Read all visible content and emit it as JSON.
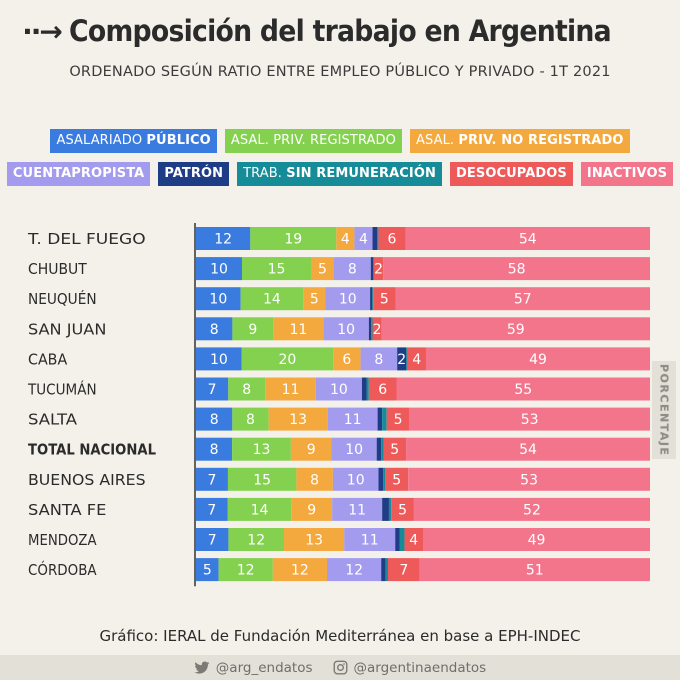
{
  "header": {
    "title": "Composición del trabajo en Argentina",
    "subtitle": "ORDENADO SEGÚN RATIO ENTRE EMPLEO PÚBLICO Y PRIVADO  -  1T 2021",
    "arrow_icon": "dotted-arrow-icon"
  },
  "legend": [
    {
      "prefix": "ASALARIADO ",
      "bold": "PÚBLICO",
      "color": "#3a7be0"
    },
    {
      "prefix": "ASAL. PRIV. REGISTRADO",
      "bold": "",
      "color": "#83d14f"
    },
    {
      "prefix": "ASAL. ",
      "bold": "PRIV. NO REGISTRADO",
      "color": "#f4a93f"
    },
    {
      "prefix": "",
      "bold": "CUENTAPROPISTA",
      "color": "#a39bee"
    },
    {
      "prefix": "",
      "bold": "PATRÓN",
      "color": "#1f3c86"
    },
    {
      "prefix": "TRAB. ",
      "bold": "SIN REMUNERACIÓN",
      "color": "#168c99"
    },
    {
      "prefix": "",
      "bold": "DESOCUPADOS",
      "color": "#ee5a5a"
    },
    {
      "prefix": "",
      "bold": "INACTIVOS",
      "color": "#f3758c"
    }
  ],
  "chart_data": {
    "type": "bar",
    "orientation": "horizontal",
    "stacked": true,
    "axis_label": "PORCENTAJE",
    "categories": [
      "T. DEL FUEGO",
      "CHUBUT",
      "NEUQUÉN",
      "SAN JUAN",
      "CABA",
      "TUCUMÁN",
      "SALTA",
      "TOTAL NACIONAL",
      "BUENOS AIRES",
      "SANTA FE",
      "MENDOZA",
      "CÓRDOBA"
    ],
    "highlight": "TOTAL NACIONAL",
    "series": [
      {
        "name": "ASALARIADO PÚBLICO",
        "color": "#3a7be0",
        "values": [
          12,
          10,
          10,
          8,
          10,
          7,
          8,
          8,
          7,
          7,
          7,
          5
        ]
      },
      {
        "name": "ASAL. PRIV. REGISTRADO",
        "color": "#83d14f",
        "values": [
          19,
          15,
          14,
          9,
          20,
          8,
          8,
          13,
          15,
          14,
          12,
          12
        ]
      },
      {
        "name": "ASAL. PRIV. NO REGISTRADO",
        "color": "#f4a93f",
        "values": [
          4,
          5,
          5,
          11,
          6,
          11,
          13,
          9,
          8,
          9,
          13,
          12
        ]
      },
      {
        "name": "CUENTAPROPISTA",
        "color": "#a39bee",
        "values": [
          4,
          8,
          10,
          10,
          8,
          10,
          11,
          10,
          10,
          11,
          11,
          12
        ]
      },
      {
        "name": "PATRÓN",
        "color": "#1f3c86",
        "values": [
          1,
          0.5,
          0.5,
          0.5,
          2,
          1,
          1,
          1,
          1,
          1.5,
          1,
          1
        ]
      },
      {
        "name": "TRAB. SIN REMUNERACIÓN",
        "color": "#168c99",
        "values": [
          0.3,
          0.2,
          0.2,
          0.3,
          0.3,
          0.5,
          1,
          0.5,
          0.5,
          0.5,
          1,
          0.5
        ]
      },
      {
        "name": "DESOCUPADOS",
        "color": "#ee5a5a",
        "values": [
          6,
          2,
          5,
          2,
          4,
          6,
          5,
          5,
          5,
          5,
          4,
          7
        ]
      },
      {
        "name": "INACTIVOS",
        "color": "#f3758c",
        "values": [
          54,
          58,
          57,
          59,
          49,
          55,
          53,
          54,
          53,
          52,
          49,
          51
        ]
      }
    ]
  },
  "source": "Gráfico: IERAL de Fundación Mediterránea en base a EPH-INDEC",
  "footer": {
    "twitter": "@arg_endatos",
    "instagram": "@argentinaendatos",
    "twitter_icon": "twitter-icon",
    "instagram_icon": "instagram-icon"
  }
}
